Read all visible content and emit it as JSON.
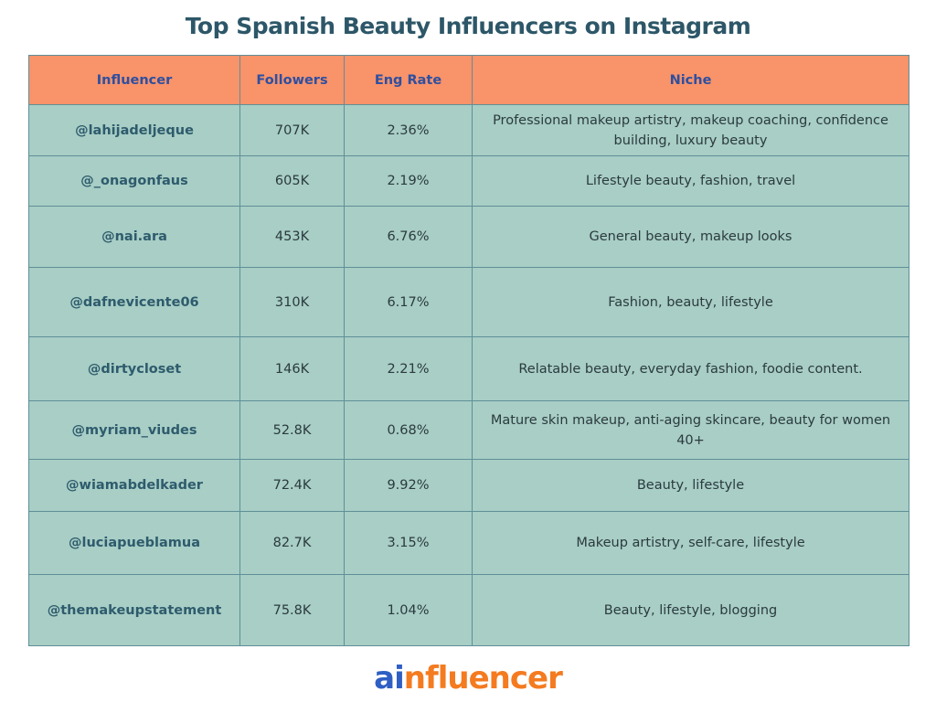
{
  "header": {
    "title": "Top Spanish Beauty Influencers on Instagram"
  },
  "table": {
    "columns": [
      "Influencer",
      "Followers",
      "Eng Rate",
      "Niche"
    ],
    "rows": [
      [
        "@lahijadeljeque",
        "707K",
        "2.36%",
        "Professional makeup artistry, makeup coaching, confidence building, luxury beauty"
      ],
      [
        "@_onagonfaus",
        "605K",
        "2.19%",
        "Lifestyle beauty, fashion, travel"
      ],
      [
        "@nai.ara",
        "453K",
        "6.76%",
        "General beauty, makeup looks"
      ],
      [
        "@dafnevicente06",
        "310K",
        "6.17%",
        "Fashion, beauty, lifestyle"
      ],
      [
        "@dirtycloset",
        "146K",
        "2.21%",
        "Relatable beauty, everyday fashion, foodie content."
      ],
      [
        "@myriam_viudes",
        "52.8K",
        "0.68%",
        "Mature skin makeup, anti-aging skincare, beauty for women 40+"
      ],
      [
        "@wiamabdelkader",
        "72.4K",
        "9.92%",
        "Beauty, lifestyle"
      ],
      [
        "@luciapueblamua",
        "82.7K",
        "3.15%",
        "Makeup artistry, self-care, lifestyle"
      ],
      [
        "@themakeupstatement",
        "75.8K",
        "1.04%",
        "Beauty, lifestyle, blogging"
      ]
    ]
  },
  "footer": {
    "logo": [
      "ai",
      "nfluencer"
    ]
  }
}
